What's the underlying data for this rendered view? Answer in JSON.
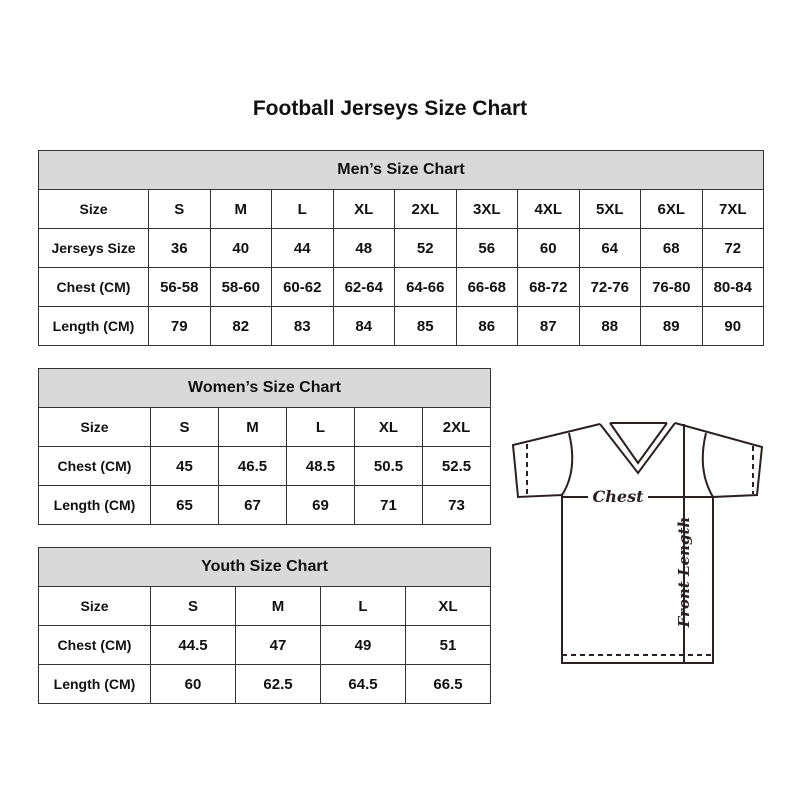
{
  "title": "Football Jerseys Size Chart",
  "men": {
    "caption": "Men’s Size Chart",
    "rows": [
      [
        "Size",
        "S",
        "M",
        "L",
        "XL",
        "2XL",
        "3XL",
        "4XL",
        "5XL",
        "6XL",
        "7XL"
      ],
      [
        "Jerseys Size",
        "36",
        "40",
        "44",
        "48",
        "52",
        "56",
        "60",
        "64",
        "68",
        "72"
      ],
      [
        "Chest (CM)",
        "56-58",
        "58-60",
        "60-62",
        "62-64",
        "64-66",
        "66-68",
        "68-72",
        "72-76",
        "76-80",
        "80-84"
      ],
      [
        "Length (CM)",
        "79",
        "82",
        "83",
        "84",
        "85",
        "86",
        "87",
        "88",
        "89",
        "90"
      ]
    ]
  },
  "women": {
    "caption": "Women’s Size Chart",
    "rows": [
      [
        "Size",
        "S",
        "M",
        "L",
        "XL",
        "2XL"
      ],
      [
        "Chest (CM)",
        "45",
        "46.5",
        "48.5",
        "50.5",
        "52.5"
      ],
      [
        "Length (CM)",
        "65",
        "67",
        "69",
        "71",
        "73"
      ]
    ]
  },
  "youth": {
    "caption": "Youth Size Chart",
    "rows": [
      [
        "Size",
        "S",
        "M",
        "L",
        "XL"
      ],
      [
        "Chest (CM)",
        "44.5",
        "47",
        "49",
        "51"
      ],
      [
        "Length (CM)",
        "60",
        "62.5",
        "64.5",
        "66.5"
      ]
    ]
  },
  "diagram": {
    "chest_label": "Chest",
    "length_label": "Front Length"
  },
  "colors": {
    "header_bg": "#d9d9d9",
    "line": "#2b2020"
  }
}
